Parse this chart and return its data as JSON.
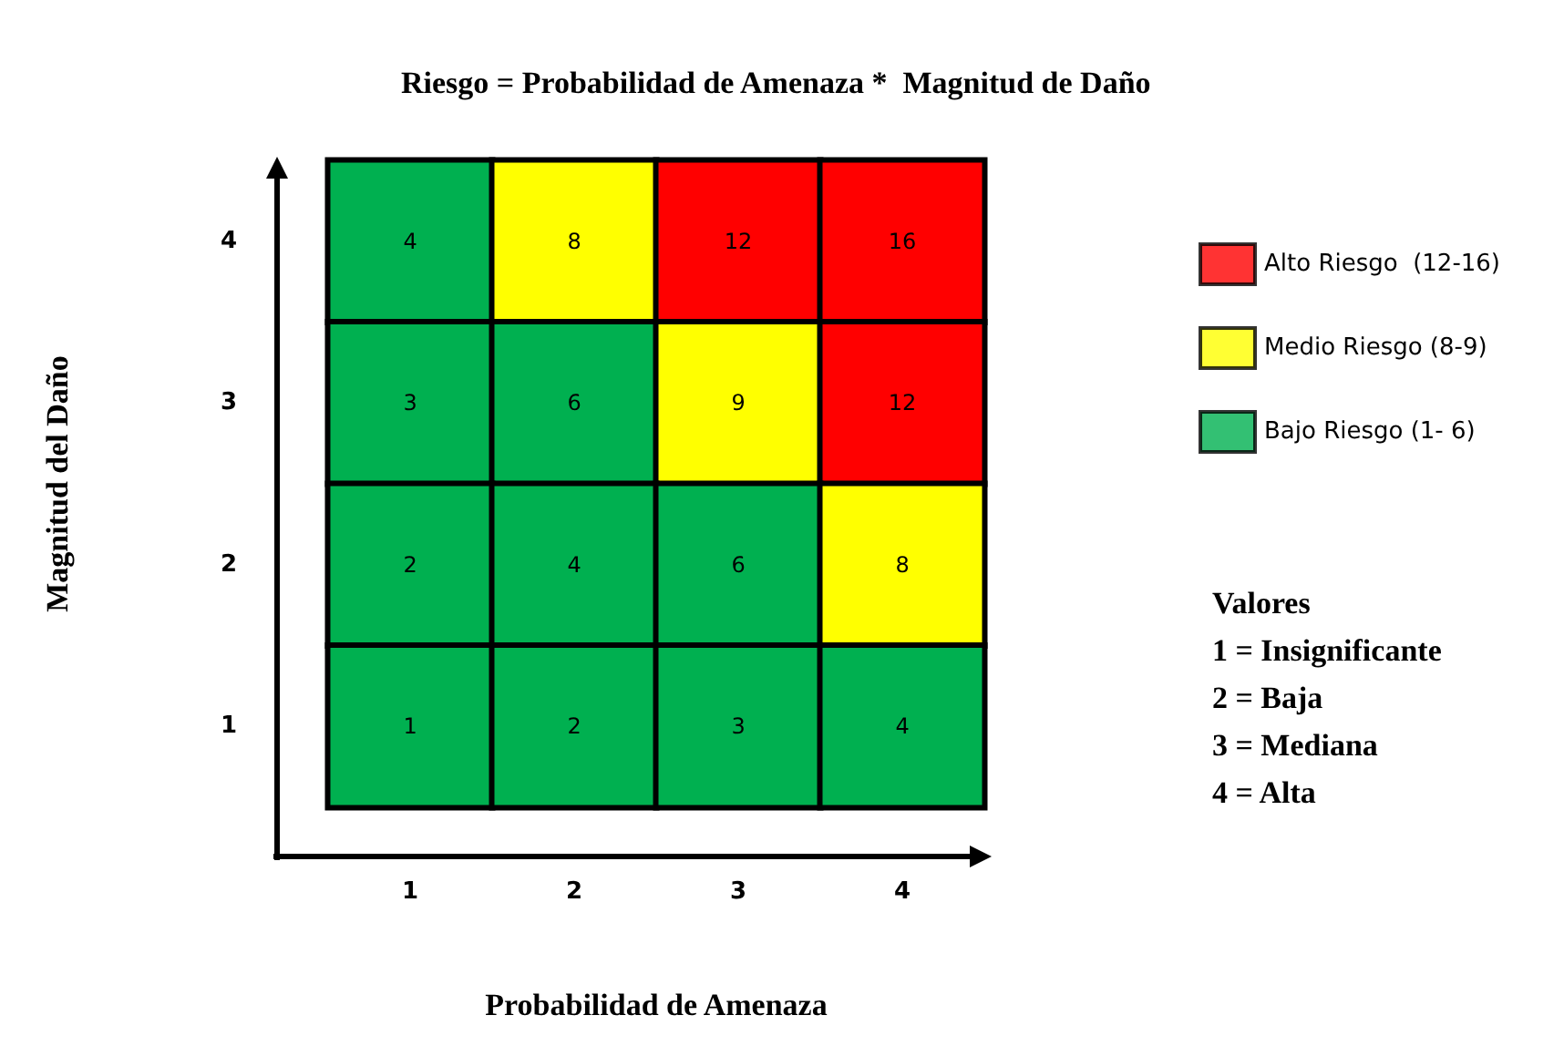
{
  "chart_data": {
    "type": "heatmap",
    "title": "Riesgo = Probabilidad de Amenaza *  Magnitud de Daño",
    "xlabel": "Probabilidad de Amenaza",
    "ylabel": "Magnitud del Daño",
    "categories": [
      "1",
      "2",
      "3",
      "4"
    ],
    "y_categories": [
      "4",
      "3",
      "2",
      "1"
    ],
    "cells": [
      [
        4,
        8,
        12,
        16
      ],
      [
        3,
        6,
        9,
        12
      ],
      [
        2,
        4,
        6,
        8
      ],
      [
        1,
        2,
        3,
        4
      ]
    ],
    "colors": [
      [
        "#00b050",
        "#ffff00",
        "#ff0000",
        "#ff0000"
      ],
      [
        "#00b050",
        "#00b050",
        "#ffff00",
        "#ff0000"
      ],
      [
        "#00b050",
        "#00b050",
        "#00b050",
        "#ffff00"
      ],
      [
        "#00b050",
        "#00b050",
        "#00b050",
        "#00b050"
      ]
    ],
    "series": [
      {
        "name": "Alto Riesgo  (12-16)",
        "color": "#ff0000",
        "values": [
          null,
          null,
          null,
          null
        ]
      },
      {
        "name": "Medio Riesgo (8-9)",
        "color": "#ffff00",
        "values": [
          null,
          null,
          null,
          null
        ]
      },
      {
        "name": "Bajo Riesgo (1- 6)",
        "color": "#00b050",
        "values": [
          null,
          null,
          null,
          null
        ]
      }
    ],
    "legend": "right",
    "data_labels": true,
    "annotations": [
      "Valores\n1 = Insignificante\n2 = Baja\n3 = Mediana\n4 = Alta"
    ]
  }
}
